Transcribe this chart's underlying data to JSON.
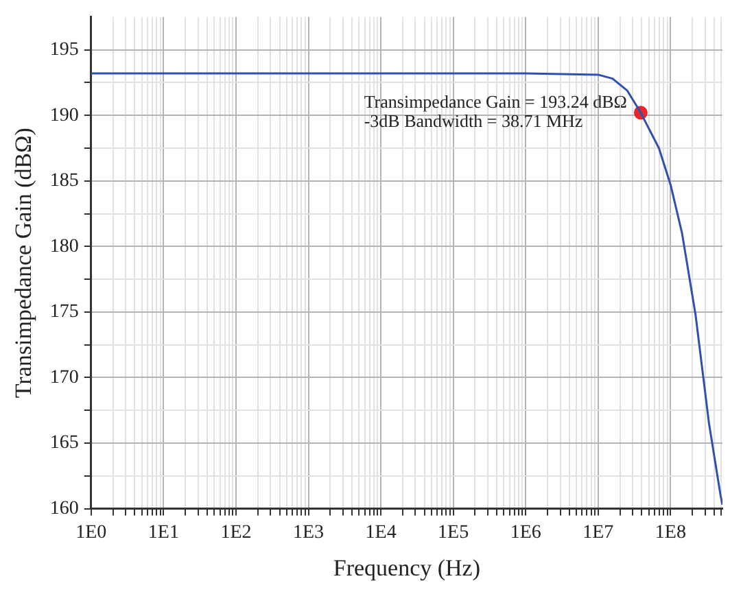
{
  "chart_data": {
    "type": "line",
    "xlabel": "Frequency (Hz)",
    "ylabel": "Transimpedance Gain (dBΩ)",
    "series": [
      {
        "type": "line",
        "color": "#3050b0",
        "marker": "none",
        "x": [
          1,
          10,
          100,
          1000,
          10000,
          100000,
          1000000,
          10000000,
          15800000,
          25100000,
          38710000,
          69000000,
          100000000,
          144000000,
          221000000,
          339000000,
          490000000,
          520000000
        ],
        "values": [
          193.2,
          193.2,
          193.2,
          193.2,
          193.2,
          193.2,
          193.2,
          193.1,
          192.8,
          191.9,
          190.2,
          187.5,
          184.7,
          181.0,
          174.8,
          166.5,
          161.0,
          160.3
        ]
      },
      {
        "type": "scatter",
        "color": "#e8262a",
        "marker": "circle",
        "x": [
          38710000
        ],
        "values": [
          190.2
        ]
      }
    ],
    "annotations": [
      "Transimpedance Gain = 193.24 dBΩ\n-3dB Bandwidth = 38.71 MHz"
    ],
    "log": "x",
    "grid": true,
    "legend": false,
    "xlim": [
      1,
      520000000
    ],
    "ylim": [
      160,
      197.5
    ],
    "xticks": [
      {
        "value": 1,
        "label": "1E0"
      },
      {
        "value": 2,
        "label": null
      },
      {
        "value": 3,
        "label": null
      },
      {
        "value": 4,
        "label": null
      },
      {
        "value": 5,
        "label": null
      },
      {
        "value": 6,
        "label": null
      },
      {
        "value": 7,
        "label": null
      },
      {
        "value": 8,
        "label": null
      },
      {
        "value": 9,
        "label": null
      },
      {
        "value": 10,
        "label": "1E1"
      },
      {
        "value": 20,
        "label": null
      },
      {
        "value": 30,
        "label": null
      },
      {
        "value": 40,
        "label": null
      },
      {
        "value": 50,
        "label": null
      },
      {
        "value": 60,
        "label": null
      },
      {
        "value": 70,
        "label": null
      },
      {
        "value": 80,
        "label": null
      },
      {
        "value": 90,
        "label": null
      },
      {
        "value": 100,
        "label": "1E2"
      },
      {
        "value": 200,
        "label": null
      },
      {
        "value": 300,
        "label": null
      },
      {
        "value": 400,
        "label": null
      },
      {
        "value": 500,
        "label": null
      },
      {
        "value": 600,
        "label": null
      },
      {
        "value": 700,
        "label": null
      },
      {
        "value": 800,
        "label": null
      },
      {
        "value": 900,
        "label": null
      },
      {
        "value": 1000,
        "label": "1E3"
      },
      {
        "value": 2000,
        "label": null
      },
      {
        "value": 3000,
        "label": null
      },
      {
        "value": 4000,
        "label": null
      },
      {
        "value": 5000,
        "label": null
      },
      {
        "value": 6000,
        "label": null
      },
      {
        "value": 7000,
        "label": null
      },
      {
        "value": 8000,
        "label": null
      },
      {
        "value": 9000,
        "label": null
      },
      {
        "value": 10000,
        "label": "1E4"
      },
      {
        "value": 20000,
        "label": null
      },
      {
        "value": 30000,
        "label": null
      },
      {
        "value": 40000,
        "label": null
      },
      {
        "value": 50000,
        "label": null
      },
      {
        "value": 60000,
        "label": null
      },
      {
        "value": 70000,
        "label": null
      },
      {
        "value": 80000,
        "label": null
      },
      {
        "value": 90000,
        "label": null
      },
      {
        "value": 100000,
        "label": "1E5"
      },
      {
        "value": 200000,
        "label": null
      },
      {
        "value": 300000,
        "label": null
      },
      {
        "value": 400000,
        "label": null
      },
      {
        "value": 500000,
        "label": null
      },
      {
        "value": 600000,
        "label": null
      },
      {
        "value": 700000,
        "label": null
      },
      {
        "value": 800000,
        "label": null
      },
      {
        "value": 900000,
        "label": null
      },
      {
        "value": 1000000,
        "label": "1E6"
      },
      {
        "value": 2000000,
        "label": null
      },
      {
        "value": 3000000,
        "label": null
      },
      {
        "value": 4000000,
        "label": null
      },
      {
        "value": 5000000,
        "label": null
      },
      {
        "value": 6000000,
        "label": null
      },
      {
        "value": 7000000,
        "label": null
      },
      {
        "value": 8000000,
        "label": null
      },
      {
        "value": 9000000,
        "label": null
      },
      {
        "value": 10000000,
        "label": "1E7"
      },
      {
        "value": 20000000,
        "label": null
      },
      {
        "value": 30000000,
        "label": null
      },
      {
        "value": 40000000,
        "label": null
      },
      {
        "value": 50000000,
        "label": null
      },
      {
        "value": 60000000,
        "label": null
      },
      {
        "value": 70000000,
        "label": null
      },
      {
        "value": 80000000,
        "label": null
      },
      {
        "value": 90000000,
        "label": null
      },
      {
        "value": 100000000,
        "label": "1E8"
      },
      {
        "value": 200000000,
        "label": null
      },
      {
        "value": 300000000,
        "label": null
      },
      {
        "value": 400000000,
        "label": null
      },
      {
        "value": 500000000,
        "label": null
      }
    ],
    "yticks": [
      160,
      {
        "value": 162.5,
        "label": null
      },
      165,
      {
        "value": 167.5,
        "label": null
      },
      170,
      {
        "value": 172.5,
        "label": null
      },
      175,
      {
        "value": 177.5,
        "label": null
      },
      180,
      {
        "value": 182.5,
        "label": null
      },
      185,
      {
        "value": 187.5,
        "label": null
      },
      190,
      {
        "value": 192.5,
        "label": null
      },
      195
    ]
  }
}
